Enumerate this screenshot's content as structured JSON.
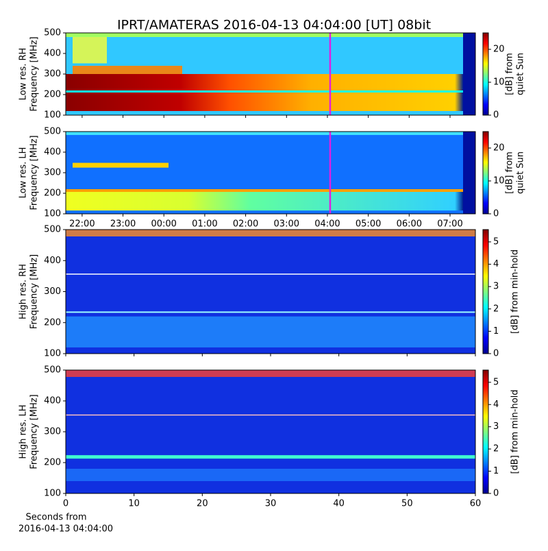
{
  "title": "IPRT/AMATERAS 2016-04-13 04:04:00 [UT]   08bit",
  "xlabel": [
    "Seconds from",
    "2016-04-13 04:04:00"
  ],
  "chart_data": [
    {
      "type": "spectrogram",
      "ylabel": [
        "Low res. RH",
        "Frequency [MHz]"
      ],
      "xlim": [
        21.6,
        31.62
      ],
      "ylim": [
        100,
        500
      ],
      "yticks": [
        100,
        200,
        300,
        400,
        500
      ],
      "clim": [
        0,
        25
      ],
      "cticks": [
        0,
        10,
        20
      ],
      "clabel": [
        "[dB] from",
        "quiet Sun"
      ]
    },
    {
      "type": "spectrogram",
      "ylabel": [
        "Low res. LH",
        "Frequency [MHz]"
      ],
      "xlim": [
        21.6,
        31.62
      ],
      "ylim": [
        100,
        500
      ],
      "yticks": [
        100,
        200,
        300,
        400,
        500
      ],
      "xticks": [
        {
          "value": 22,
          "label": "22:00"
        },
        {
          "value": 23,
          "label": "23:00"
        },
        {
          "value": 24,
          "label": "00:00"
        },
        {
          "value": 25,
          "label": "01:00"
        },
        {
          "value": 26,
          "label": "02:00"
        },
        {
          "value": 27,
          "label": "03:00"
        },
        {
          "value": 28,
          "label": "04:00"
        },
        {
          "value": 29,
          "label": "05:00"
        },
        {
          "value": 30,
          "label": "06:00"
        },
        {
          "value": 31,
          "label": "07:00"
        }
      ],
      "clim": [
        0,
        25
      ],
      "cticks": [
        0,
        10,
        20
      ],
      "clabel": [
        "[dB] from",
        "quiet Sun"
      ]
    },
    {
      "type": "spectrogram",
      "ylabel": [
        "High res. RH",
        "Frequency [MHz]"
      ],
      "xlim": [
        0,
        60
      ],
      "ylim": [
        100,
        500
      ],
      "yticks": [
        100,
        200,
        300,
        400,
        500
      ],
      "clim": [
        0,
        5.55
      ],
      "cticks": [
        0,
        1,
        2,
        3,
        4,
        5
      ],
      "clabel": [
        "[dB] from min-hold"
      ]
    },
    {
      "type": "spectrogram",
      "ylabel": [
        "High res. LH",
        "Frequency [MHz]"
      ],
      "xlim": [
        0,
        60
      ],
      "ylim": [
        100,
        500
      ],
      "yticks": [
        100,
        200,
        300,
        400,
        500
      ],
      "xticks": [
        0,
        10,
        20,
        30,
        40,
        50,
        60
      ],
      "clim": [
        0,
        5.55
      ],
      "cticks": [
        0,
        1,
        2,
        3,
        4,
        5
      ],
      "clabel": [
        "[dB] from min-hold"
      ]
    }
  ]
}
